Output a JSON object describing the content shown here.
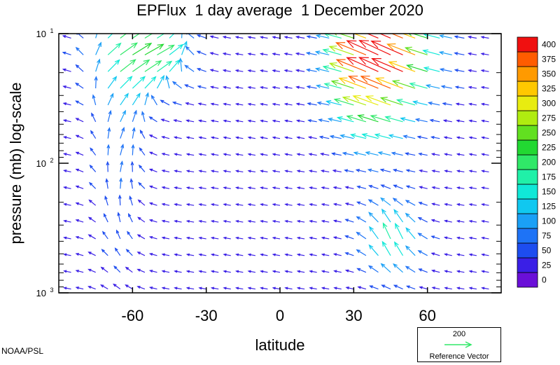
{
  "chart_data": {
    "type": "quiver",
    "title": "EPFlux  1 day average  1 December 2020",
    "xlabel": "latitude",
    "ylabel": "pressure (mb)  log-scale",
    "x_ticks": [
      -60,
      -30,
      0,
      30,
      60
    ],
    "x_tick_labels": [
      "-60",
      "-30",
      "0",
      "30",
      "60"
    ],
    "xlim": [
      -90,
      90
    ],
    "y_scale": "log",
    "ylim": [
      1000,
      10
    ],
    "y_ticks": [
      {
        "base": "10",
        "exp": "1",
        "value": 10
      },
      {
        "base": "10",
        "exp": "2",
        "value": 100
      },
      {
        "base": "10",
        "exp": "3",
        "value": 1000
      }
    ],
    "colorbar": {
      "levels": [
        0,
        25,
        50,
        75,
        100,
        125,
        150,
        175,
        200,
        225,
        250,
        275,
        300,
        325,
        350,
        375,
        400
      ],
      "labels": [
        "400",
        "375",
        "350",
        "325",
        "300",
        "275",
        "250",
        "225",
        "200",
        "175",
        "150",
        "125",
        "100",
        "75",
        "50",
        "25",
        "0"
      ],
      "colors": [
        "#6a0fd8",
        "#3a1fe6",
        "#1d4df0",
        "#1e73f6",
        "#1aa0f6",
        "#10c8f0",
        "#10e8d8",
        "#20f0a8",
        "#30e868",
        "#22d832",
        "#62e020",
        "#b0ec10",
        "#e8ec10",
        "#ffc800",
        "#ff9a00",
        "#ff5c00",
        "#f01010"
      ]
    },
    "reference_vector": {
      "value": "200",
      "label": "Reference Vector",
      "color": "#30e868"
    },
    "credit": "NOAA/PSL"
  }
}
